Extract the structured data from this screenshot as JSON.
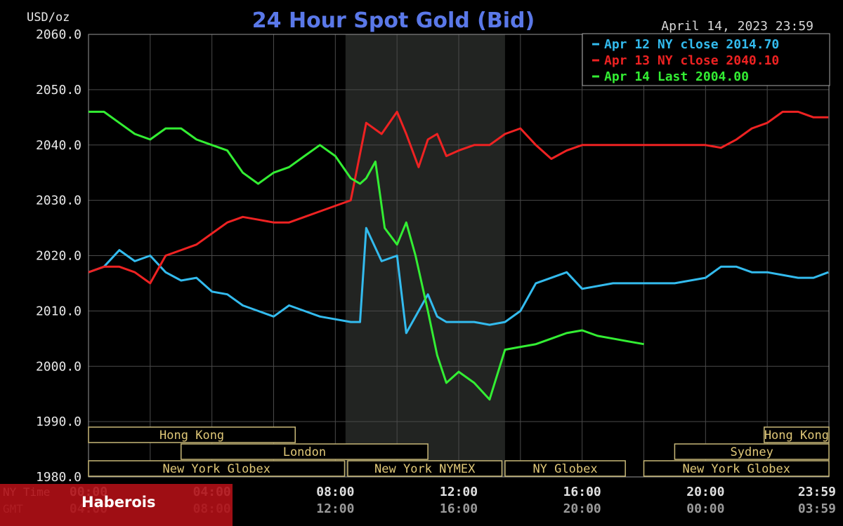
{
  "chart_data": {
    "type": "line",
    "title": "24 Hour Spot Gold (Bid)",
    "ylabel": "USD/oz",
    "timestamp": "April 14, 2023 23:59",
    "ylim": [
      1980,
      2060
    ],
    "xlim": [
      0,
      24
    ],
    "y_ticks": [
      "2060.0",
      "2050.0",
      "2040.0",
      "2030.0",
      "2020.0",
      "2010.0",
      "2000.0",
      "1990.0",
      "1980.0"
    ],
    "x_tick_rows": [
      {
        "label": "NY Time",
        "ticks": [
          "00:00",
          "04:00",
          "08:00",
          "12:00",
          "16:00",
          "20:00",
          "23:59"
        ]
      },
      {
        "label": "GMT",
        "ticks": [
          "04:00",
          "08:00",
          "12:00",
          "16:00",
          "20:00",
          "00:00",
          "03:59"
        ]
      }
    ],
    "grid": true,
    "legend_position": "top-right",
    "shaded_session": {
      "start_hour": 8.33,
      "end_hour": 13.5
    },
    "series": [
      {
        "name": "Apr 12 NY close 2014.70",
        "color": "#33bbee",
        "x": [
          0,
          0.5,
          1,
          1.5,
          2,
          2.5,
          3,
          3.5,
          4,
          4.5,
          5,
          5.5,
          6,
          6.5,
          7,
          7.5,
          8,
          8.5,
          8.8,
          9,
          9.5,
          10,
          10.3,
          10.7,
          11,
          11.3,
          11.6,
          12,
          12.5,
          13,
          13.5,
          14,
          14.5,
          15,
          15.5,
          16,
          17,
          18,
          19,
          20,
          20.5,
          21,
          21.5,
          22,
          22.5,
          23,
          23.5,
          23.98
        ],
        "y": [
          2017,
          2018,
          2021,
          2019,
          2020,
          2017,
          2015.5,
          2016,
          2013.5,
          2013,
          2011,
          2010,
          2009,
          2011,
          2010,
          2009,
          2008.5,
          2008,
          2008,
          2025,
          2019,
          2020,
          2006,
          2010,
          2013,
          2009,
          2008,
          2008,
          2008,
          2007.5,
          2008,
          2010,
          2015,
          2016,
          2017,
          2014,
          2015,
          2015,
          2015,
          2016,
          2018,
          2018,
          2017,
          2017,
          2016.5,
          2016,
          2016,
          2017
        ]
      },
      {
        "name": "Apr 13 NY close 2040.10",
        "color": "#ee2222",
        "x": [
          0,
          0.5,
          1,
          1.5,
          2,
          2.5,
          3,
          3.5,
          4,
          4.5,
          5,
          5.5,
          6,
          6.5,
          7,
          7.5,
          8,
          8.5,
          9,
          9.5,
          10,
          10.3,
          10.7,
          11,
          11.3,
          11.6,
          12,
          12.5,
          13,
          13.5,
          14,
          14.5,
          15,
          15.5,
          16,
          17,
          18,
          19,
          20,
          20.5,
          21,
          21.5,
          22,
          22.5,
          23,
          23.5,
          23.98
        ],
        "y": [
          2017,
          2018,
          2018,
          2017,
          2015,
          2020,
          2021,
          2022,
          2024,
          2026,
          2027,
          2026.5,
          2026,
          2026,
          2027,
          2028,
          2029,
          2030,
          2044,
          2042,
          2046,
          2042,
          2036,
          2041,
          2042,
          2038,
          2039,
          2040,
          2040,
          2042,
          2043,
          2040,
          2037.5,
          2039,
          2040,
          2040,
          2040,
          2040,
          2040,
          2039.5,
          2041,
          2043,
          2044,
          2046,
          2046,
          2045,
          2045
        ]
      },
      {
        "name": "Apr 14 Last 2004.00",
        "color": "#33ee33",
        "x": [
          0,
          0.5,
          1,
          1.5,
          2,
          2.5,
          3,
          3.5,
          4,
          4.5,
          5,
          5.5,
          6,
          6.5,
          7,
          7.5,
          8,
          8.5,
          8.8,
          9,
          9.3,
          9.6,
          10,
          10.3,
          10.6,
          11,
          11.3,
          11.6,
          12,
          12.5,
          13,
          13.5,
          14,
          14.5,
          15,
          15.5,
          16,
          16.5,
          17,
          17.5,
          18
        ],
        "y": [
          2046,
          2046,
          2044,
          2042,
          2041,
          2043,
          2043,
          2041,
          2040,
          2039,
          2035,
          2033,
          2035,
          2036,
          2038,
          2040,
          2038,
          2034,
          2033,
          2034,
          2037,
          2025,
          2022,
          2026,
          2020,
          2010,
          2002,
          1997,
          1999,
          1997,
          1994,
          2003,
          2003.5,
          2004,
          2005,
          2006,
          2006.5,
          2005.5,
          2005,
          2004.5,
          2004
        ]
      }
    ],
    "sessions": [
      {
        "name": "Hong Kong",
        "start": 0,
        "end": 6.7,
        "row": 1
      },
      {
        "name": "Hong Kong",
        "start": 21.9,
        "end": 24,
        "row": 1
      },
      {
        "name": "London",
        "start": 3,
        "end": 11,
        "row": 2
      },
      {
        "name": "Sydney",
        "start": 19,
        "end": 24,
        "row": 2
      },
      {
        "name": "New York Globex",
        "start": 0,
        "end": 8.3,
        "row": 3
      },
      {
        "name": "New York NYMEX",
        "start": 8.4,
        "end": 13.4,
        "row": 3
      },
      {
        "name": "NY Globex",
        "start": 13.5,
        "end": 17.4,
        "row": 3
      },
      {
        "name": "New York Globex",
        "start": 18,
        "end": 24,
        "row": 3
      }
    ]
  },
  "watermark": {
    "text": "Haberois",
    "color": "#c8141a"
  }
}
